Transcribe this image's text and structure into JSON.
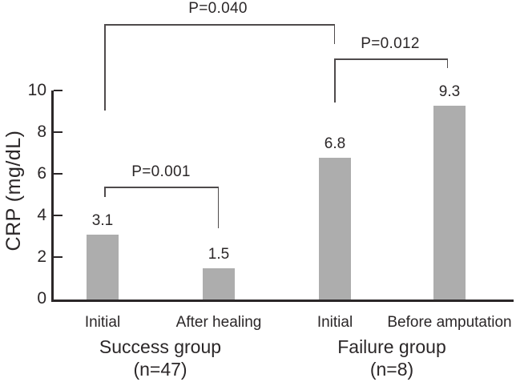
{
  "chart_data": {
    "type": "bar",
    "title": "",
    "ylabel": "CRP (mg/dL)",
    "xlabel": "",
    "ylim": [
      0,
      10
    ],
    "yticks": [
      0,
      2,
      4,
      6,
      8,
      10
    ],
    "grid": false,
    "legend": false,
    "bar_color": "#adadad",
    "axis_color": "#2b2728",
    "bracket_color": "#4f4b4c",
    "groups": [
      {
        "label": "Success group",
        "n_label": "(n=47)",
        "bars": [
          {
            "category": "Initial",
            "value": 3.1,
            "value_label": "3.1"
          },
          {
            "category": "After healing",
            "value": 1.5,
            "value_label": "1.5"
          }
        ]
      },
      {
        "label": "Failure group",
        "n_label": "(n=8)",
        "bars": [
          {
            "category": "Initial",
            "value": 6.8,
            "value_label": "6.8"
          },
          {
            "category": "Before amputation",
            "value": 9.3,
            "value_label": "9.3"
          }
        ]
      }
    ],
    "significance_brackets": [
      {
        "label": "P=0.040",
        "between": [
          "Success group Initial",
          "Failure group Initial"
        ]
      },
      {
        "label": "P=0.012",
        "between": [
          "Failure group Initial",
          "Failure group Before amputation"
        ]
      },
      {
        "label": "P=0.001",
        "between": [
          "Success group Initial",
          "Success group After healing"
        ]
      }
    ]
  }
}
